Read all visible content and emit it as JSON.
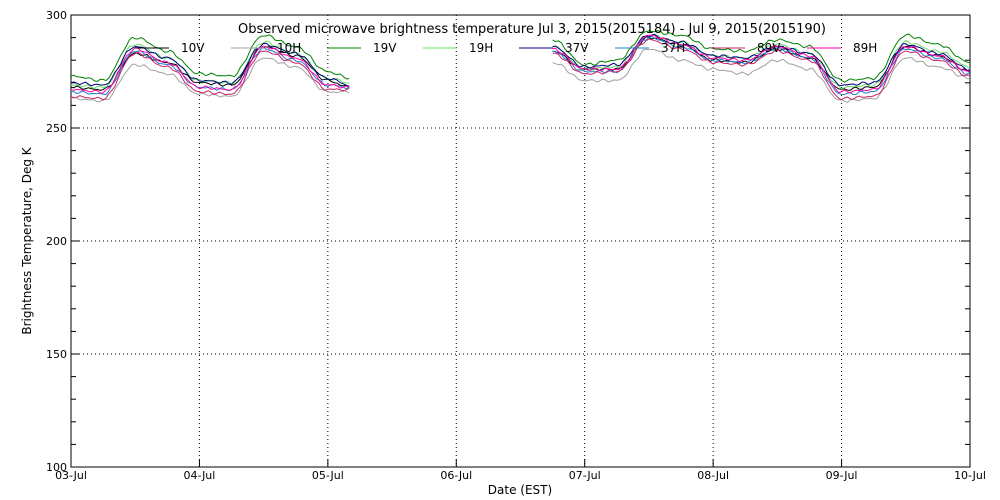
{
  "chart_data": {
    "type": "line",
    "title": "Observed microwave brightness temperature Jul  3, 2015(2015184) - Jul  9, 2015(2015190)",
    "xlabel": "Date (EST)",
    "ylabel": "Brightness Temperature, Deg K",
    "ylim": [
      100,
      300
    ],
    "yticks": [
      100,
      150,
      200,
      250,
      300
    ],
    "xlim": [
      "2015-07-03",
      "2015-07-10"
    ],
    "xticks": [
      "03-Jul",
      "04-Jul",
      "05-Jul",
      "06-Jul",
      "07-Jul",
      "08-Jul",
      "09-Jul",
      "10-Jul"
    ],
    "grid": true,
    "legend": "top",
    "x": [
      "2015-07-03 00:00",
      "2015-07-03 06:00",
      "2015-07-03 12:00",
      "2015-07-03 18:00",
      "2015-07-04 00:00",
      "2015-07-04 06:00",
      "2015-07-04 12:00",
      "2015-07-04 18:00",
      "2015-07-05 00:00",
      "2015-07-05 04:00",
      "2015-07-06 10:00",
      "2015-07-06 18:00",
      "2015-07-07 00:00",
      "2015-07-07 06:00",
      "2015-07-07 12:00",
      "2015-07-07 18:00",
      "2015-07-08 00:00",
      "2015-07-08 06:00",
      "2015-07-08 12:00",
      "2015-07-08 18:00",
      "2015-07-09 00:00",
      "2015-07-09 06:00",
      "2015-07-09 12:00",
      "2015-07-09 18:00",
      "2015-07-10 00:00"
    ],
    "series": [
      {
        "name": "10V",
        "color": "#000000",
        "values": [
          268,
          267,
          283,
          279,
          270,
          269,
          286,
          282,
          271,
          268,
          null,
          284,
          276,
          276,
          290,
          287,
          280,
          279,
          285,
          281,
          267,
          268,
          286,
          282,
          275
        ]
      },
      {
        "name": "10H",
        "color": "#a0a0a0",
        "values": [
          263,
          262,
          278,
          274,
          265,
          264,
          281,
          277,
          266,
          266,
          null,
          279,
          271,
          271,
          285,
          280,
          276,
          274,
          280,
          276,
          262,
          263,
          281,
          277,
          272
        ]
      },
      {
        "name": "19V",
        "color": "#008000",
        "values": [
          273,
          271,
          290,
          284,
          274,
          273,
          291,
          286,
          275,
          272,
          null,
          289,
          278,
          280,
          293,
          291,
          285,
          284,
          289,
          286,
          271,
          272,
          291,
          287,
          279
        ]
      },
      {
        "name": "19H",
        "color": "#66dd66",
        "values": [
          269,
          268,
          287,
          281,
          271,
          270,
          288,
          283,
          272,
          270,
          null,
          286,
          276,
          277,
          291,
          288,
          282,
          281,
          287,
          283,
          268,
          269,
          288,
          284,
          277
        ]
      },
      {
        "name": "37V",
        "color": "#00007f",
        "values": [
          270,
          269,
          286,
          281,
          271,
          270,
          287,
          283,
          272,
          269,
          null,
          286,
          277,
          278,
          291,
          288,
          282,
          281,
          286,
          283,
          269,
          270,
          287,
          283,
          276
        ]
      },
      {
        "name": "37H",
        "color": "#1f7fd0",
        "values": [
          266,
          265,
          284,
          278,
          268,
          267,
          285,
          280,
          269,
          268,
          null,
          284,
          275,
          275,
          290,
          286,
          280,
          279,
          285,
          281,
          265,
          266,
          285,
          281,
          274
        ]
      },
      {
        "name": "89V",
        "color": "#cc2266",
        "values": [
          264,
          263,
          283,
          277,
          266,
          265,
          284,
          279,
          267,
          267,
          null,
          283,
          274,
          275,
          289,
          285,
          279,
          278,
          284,
          280,
          263,
          264,
          284,
          280,
          273
        ]
      },
      {
        "name": "89H",
        "color": "#ff00aa",
        "values": [
          267,
          266,
          285,
          279,
          268,
          267,
          286,
          281,
          269,
          268,
          null,
          285,
          276,
          276,
          291,
          287,
          281,
          280,
          286,
          282,
          266,
          267,
          286,
          282,
          275
        ]
      }
    ]
  }
}
